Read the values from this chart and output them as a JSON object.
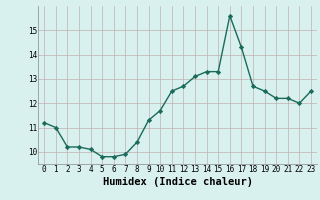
{
  "x": [
    0,
    1,
    2,
    3,
    4,
    5,
    6,
    7,
    8,
    9,
    10,
    11,
    12,
    13,
    14,
    15,
    16,
    17,
    18,
    19,
    20,
    21,
    22,
    23
  ],
  "y": [
    11.2,
    11.0,
    10.2,
    10.2,
    10.1,
    9.8,
    9.8,
    9.9,
    10.4,
    11.3,
    11.7,
    12.5,
    12.7,
    13.1,
    13.3,
    13.3,
    15.6,
    14.3,
    12.7,
    12.5,
    12.2,
    12.2,
    12.0,
    12.5
  ],
  "line_color": "#1a6b5a",
  "marker": "D",
  "marker_size": 2.2,
  "bg_color": "#d8f0ee",
  "grid_color": "#c0b0b0",
  "xlabel": "Humidex (Indice chaleur)",
  "ylim": [
    9.5,
    16.0
  ],
  "xlim": [
    -0.5,
    23.5
  ],
  "yticks": [
    10,
    11,
    12,
    13,
    14,
    15
  ],
  "xticks": [
    0,
    1,
    2,
    3,
    4,
    5,
    6,
    7,
    8,
    9,
    10,
    11,
    12,
    13,
    14,
    15,
    16,
    17,
    18,
    19,
    20,
    21,
    22,
    23
  ],
  "tick_fontsize": 5.5,
  "xlabel_fontsize": 7.5,
  "line_width": 1.0
}
